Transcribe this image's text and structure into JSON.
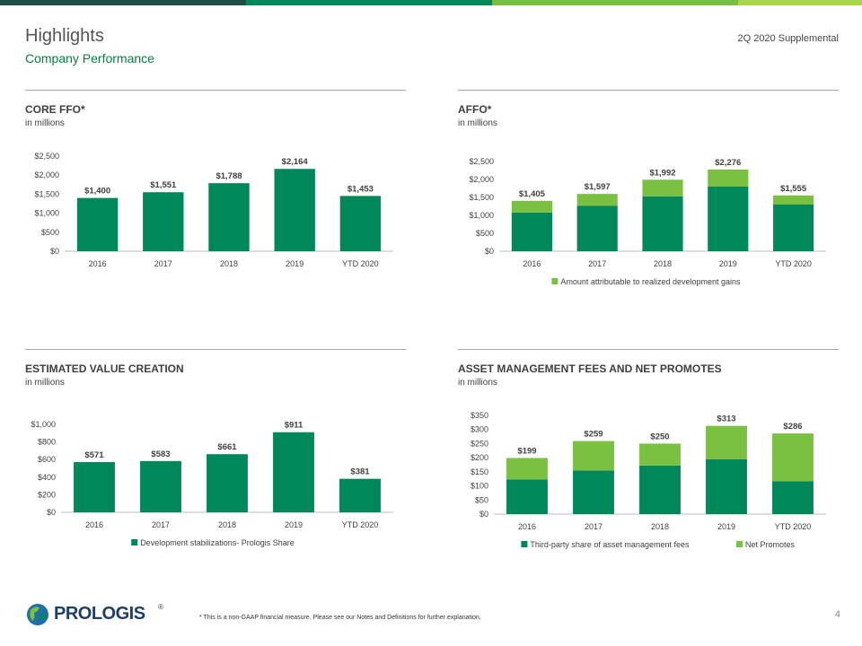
{
  "header": {
    "title": "Highlights",
    "subtitle": "Company Performance",
    "supplemental": "2Q 2020 Supplemental"
  },
  "colors": {
    "dark_green": "#00875a",
    "light_green": "#7ac142",
    "topbar": [
      "#1f4e45",
      "#00875a",
      "#78be43",
      "#a8d54a"
    ]
  },
  "chart_data": [
    {
      "id": "core-ffo",
      "type": "bar",
      "title": "CORE FFO*",
      "unit": "in millions",
      "categories": [
        "2016",
        "2017",
        "2018",
        "2019",
        "YTD 2020"
      ],
      "series": [
        {
          "values": [
            1400,
            1551,
            1788,
            2164,
            1453
          ],
          "color": "#00875a"
        }
      ],
      "total_labels": [
        "$1,400",
        "$1,551",
        "$1,788",
        "$2,164",
        "$1,453"
      ],
      "y_ticks": [
        0,
        500,
        1000,
        1500,
        2000,
        2500
      ],
      "y_tick_labels": [
        "$0",
        "$500",
        "$1,000",
        "$1,500",
        "$2,000",
        "$2,500"
      ],
      "ylim": [
        0,
        2500
      ],
      "legend": []
    },
    {
      "id": "affo",
      "type": "bar",
      "title": "AFFO*",
      "unit": "in millions",
      "categories": [
        "2016",
        "2017",
        "2018",
        "2019",
        "YTD 2020"
      ],
      "series": [
        {
          "values": [
            1080,
            1270,
            1530,
            1800,
            1300
          ],
          "color": "#00875a"
        },
        {
          "name": "Amount attributable to realized development gains",
          "values": [
            325,
            327,
            462,
            476,
            255
          ],
          "color": "#7ac142"
        }
      ],
      "total_labels": [
        "$1,405",
        "$1,597",
        "$1,992",
        "$2,276",
        "$1,555"
      ],
      "y_ticks": [
        0,
        500,
        1000,
        1500,
        2000,
        2500
      ],
      "y_tick_labels": [
        "$0",
        "$500",
        "$1,000",
        "$1,500",
        "$2,000",
        "$2,500"
      ],
      "ylim": [
        0,
        2500
      ],
      "legend": [
        "Amount attributable to realized development gains"
      ],
      "legend_colors": [
        "#7ac142"
      ]
    },
    {
      "id": "value-creation",
      "type": "bar",
      "title": "ESTIMATED VALUE CREATION",
      "unit": "in millions",
      "categories": [
        "2016",
        "2017",
        "2018",
        "2019",
        "YTD 2020"
      ],
      "series": [
        {
          "name": "Development stabilizations- Prologis Share",
          "values": [
            571,
            583,
            661,
            911,
            381
          ],
          "color": "#00875a"
        }
      ],
      "total_labels": [
        "$571",
        "$583",
        "$661",
        "$911",
        "$381"
      ],
      "y_ticks": [
        0,
        200,
        400,
        600,
        800,
        1000
      ],
      "y_tick_labels": [
        "$0",
        "$200",
        "$400",
        "$600",
        "$800",
        "$1,000"
      ],
      "ylim": [
        0,
        1000
      ],
      "legend": [
        "Development stabilizations- Prologis Share"
      ],
      "legend_colors": [
        "#00875a"
      ]
    },
    {
      "id": "asset-mgmt",
      "type": "bar",
      "title": "ASSET MANAGEMENT FEES AND NET PROMOTES",
      "unit": "in millions",
      "categories": [
        "2016",
        "2017",
        "2018",
        "2019",
        "YTD 2020"
      ],
      "series": [
        {
          "name": "Third-party share of asset management fees",
          "values": [
            123,
            155,
            172,
            195,
            117
          ],
          "color": "#00875a"
        },
        {
          "name": "Net Promotes",
          "values": [
            76,
            104,
            78,
            118,
            169
          ],
          "color": "#7ac142"
        }
      ],
      "total_labels": [
        "$199",
        "$259",
        "$250",
        "$313",
        "$286"
      ],
      "y_ticks": [
        0,
        50,
        100,
        150,
        200,
        250,
        300,
        350
      ],
      "y_tick_labels": [
        "$0",
        "$50",
        "$100",
        "$150",
        "$200",
        "$250",
        "$300",
        "$350"
      ],
      "ylim": [
        0,
        350
      ],
      "legend": [
        "Third-party share of asset management fees",
        "Net Promotes"
      ],
      "legend_colors": [
        "#00875a",
        "#7ac142"
      ]
    }
  ],
  "footer": {
    "footnote": "* This is a non-GAAP financial measure.  Please see our Notes and Definitions for further explanation.",
    "page_number": "4",
    "logo_text": "PROLOGIS",
    "logo_reg": "®"
  }
}
